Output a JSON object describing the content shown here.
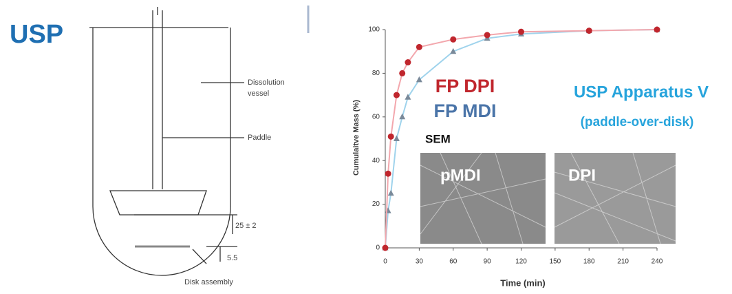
{
  "diagram": {
    "title": "USP",
    "labels": [
      "Dissolution",
      "vessel",
      "Paddle",
      "25 ± 2",
      "5.5",
      "Disk assembly"
    ]
  },
  "chart_data": {
    "type": "line",
    "x_label": "Time (min)",
    "y_label": "Cumulaitve Mass (%)",
    "x": [
      0,
      2.5,
      5,
      10,
      15,
      20,
      30,
      60,
      90,
      120,
      180,
      240
    ],
    "series": [
      {
        "name": "FP DPI",
        "color": "#c0262d",
        "values": [
          0,
          34,
          51,
          70,
          80,
          85,
          92,
          95.5,
          97.5,
          99,
          99.5,
          100
        ]
      },
      {
        "name": "FP MDI",
        "color": "#4a74a8",
        "values": [
          0,
          17,
          25,
          50,
          60,
          69,
          77,
          90,
          96,
          98,
          99.5,
          100
        ]
      }
    ],
    "xlim": [
      0,
      240
    ],
    "xticks": [
      0,
      30,
      60,
      90,
      120,
      150,
      180,
      210,
      240
    ],
    "ylim": [
      0,
      100
    ],
    "yticks": [
      0,
      20,
      40,
      60,
      80,
      100
    ],
    "annotations": [
      "USP Apparatus V",
      "(paddle-over-disk)",
      "SEM",
      "pMDI",
      "DPI"
    ]
  }
}
